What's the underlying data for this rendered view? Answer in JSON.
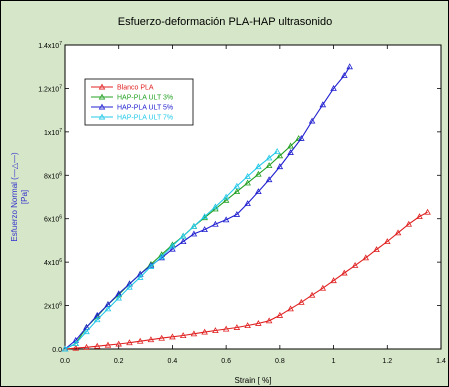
{
  "colors": {
    "outer_background": "#d6e6c8",
    "plot_background": "#ffffff",
    "ylabel_color": "#3333cc"
  },
  "chart_data": {
    "type": "line",
    "title": "Esfuerzo-deformación PLA-HAP ultrasonido",
    "xlabel": "Strain [ %]",
    "ylabel": "Esfuerzo Normal (—△—)",
    "ylabel_unit": "[Pa]",
    "xlim": [
      0,
      1.4
    ],
    "ylim": [
      0,
      14000000
    ],
    "x_ticks": [
      0.0,
      0.2,
      0.4,
      0.6,
      0.8,
      1.0,
      1.2,
      1.4
    ],
    "x_tick_labels": [
      "0.0",
      "0.2",
      "0.4",
      "0.6",
      "0.8",
      "1",
      "1.2",
      "1.4"
    ],
    "y_ticks": [
      0,
      2000000,
      4000000,
      6000000,
      8000000,
      10000000,
      12000000,
      14000000
    ],
    "y_tick_labels": [
      "0.0",
      "2x10^6",
      "4x10^6",
      "6x10^6",
      "8x10^6",
      "1x10^7",
      "1.2x10^7",
      "1.4x10^7"
    ],
    "grid": false,
    "legend_position": "top-left",
    "marker": "open-triangle",
    "series": [
      {
        "name": "Blanco PLA",
        "color": "#e02020",
        "x": [
          0.0,
          0.04,
          0.08,
          0.12,
          0.16,
          0.2,
          0.24,
          0.28,
          0.32,
          0.36,
          0.4,
          0.44,
          0.48,
          0.52,
          0.56,
          0.6,
          0.64,
          0.68,
          0.72,
          0.76,
          0.8,
          0.84,
          0.88,
          0.92,
          0.96,
          1.0,
          1.04,
          1.08,
          1.12,
          1.16,
          1.2,
          1.24,
          1.28,
          1.32,
          1.35
        ],
        "y": [
          0,
          40000,
          80000,
          130000,
          180000,
          230000,
          290000,
          360000,
          430000,
          500000,
          560000,
          620000,
          700000,
          780000,
          850000,
          920000,
          990000,
          1080000,
          1180000,
          1300000,
          1550000,
          1850000,
          2150000,
          2480000,
          2800000,
          3150000,
          3500000,
          3850000,
          4200000,
          4580000,
          4950000,
          5350000,
          5750000,
          6100000,
          6300000
        ]
      },
      {
        "name": "HAP-PLA ULT 3%",
        "color": "#22a022",
        "x": [
          0.0,
          0.04,
          0.08,
          0.12,
          0.16,
          0.2,
          0.24,
          0.28,
          0.32,
          0.36,
          0.4,
          0.44,
          0.48,
          0.52,
          0.56,
          0.6,
          0.64,
          0.68,
          0.72,
          0.76,
          0.8,
          0.84,
          0.87
        ],
        "y": [
          0,
          250000,
          1000000,
          1500000,
          2050000,
          2500000,
          3000000,
          3450000,
          3900000,
          4350000,
          4800000,
          5200000,
          5650000,
          6050000,
          6450000,
          6850000,
          7250000,
          7650000,
          8050000,
          8450000,
          8900000,
          9350000,
          9700000
        ]
      },
      {
        "name": "HAP-PLA ULT 5%",
        "color": "#2020d0",
        "x": [
          0.0,
          0.04,
          0.08,
          0.12,
          0.16,
          0.2,
          0.24,
          0.28,
          0.32,
          0.36,
          0.4,
          0.44,
          0.48,
          0.52,
          0.56,
          0.6,
          0.64,
          0.68,
          0.72,
          0.76,
          0.8,
          0.84,
          0.88,
          0.92,
          0.96,
          1.0,
          1.04,
          1.06
        ],
        "y": [
          0,
          400000,
          1000000,
          1550000,
          2050000,
          2550000,
          3000000,
          3450000,
          3850000,
          4200000,
          4600000,
          4950000,
          5300000,
          5500000,
          5750000,
          5950000,
          6200000,
          6700000,
          7250000,
          7800000,
          8400000,
          9050000,
          9700000,
          10500000,
          11250000,
          12000000,
          12600000,
          13000000
        ]
      },
      {
        "name": "HAP-PLA ULT 7%",
        "color": "#22c8e8",
        "x": [
          0.0,
          0.04,
          0.08,
          0.12,
          0.16,
          0.2,
          0.24,
          0.28,
          0.32,
          0.36,
          0.4,
          0.44,
          0.48,
          0.52,
          0.56,
          0.6,
          0.64,
          0.68,
          0.72,
          0.76,
          0.79
        ],
        "y": [
          0,
          250000,
          800000,
          1350000,
          1850000,
          2350000,
          2850000,
          3300000,
          3800000,
          4250000,
          4750000,
          5200000,
          5650000,
          6100000,
          6550000,
          7000000,
          7500000,
          7950000,
          8400000,
          8800000,
          9100000
        ]
      }
    ]
  }
}
